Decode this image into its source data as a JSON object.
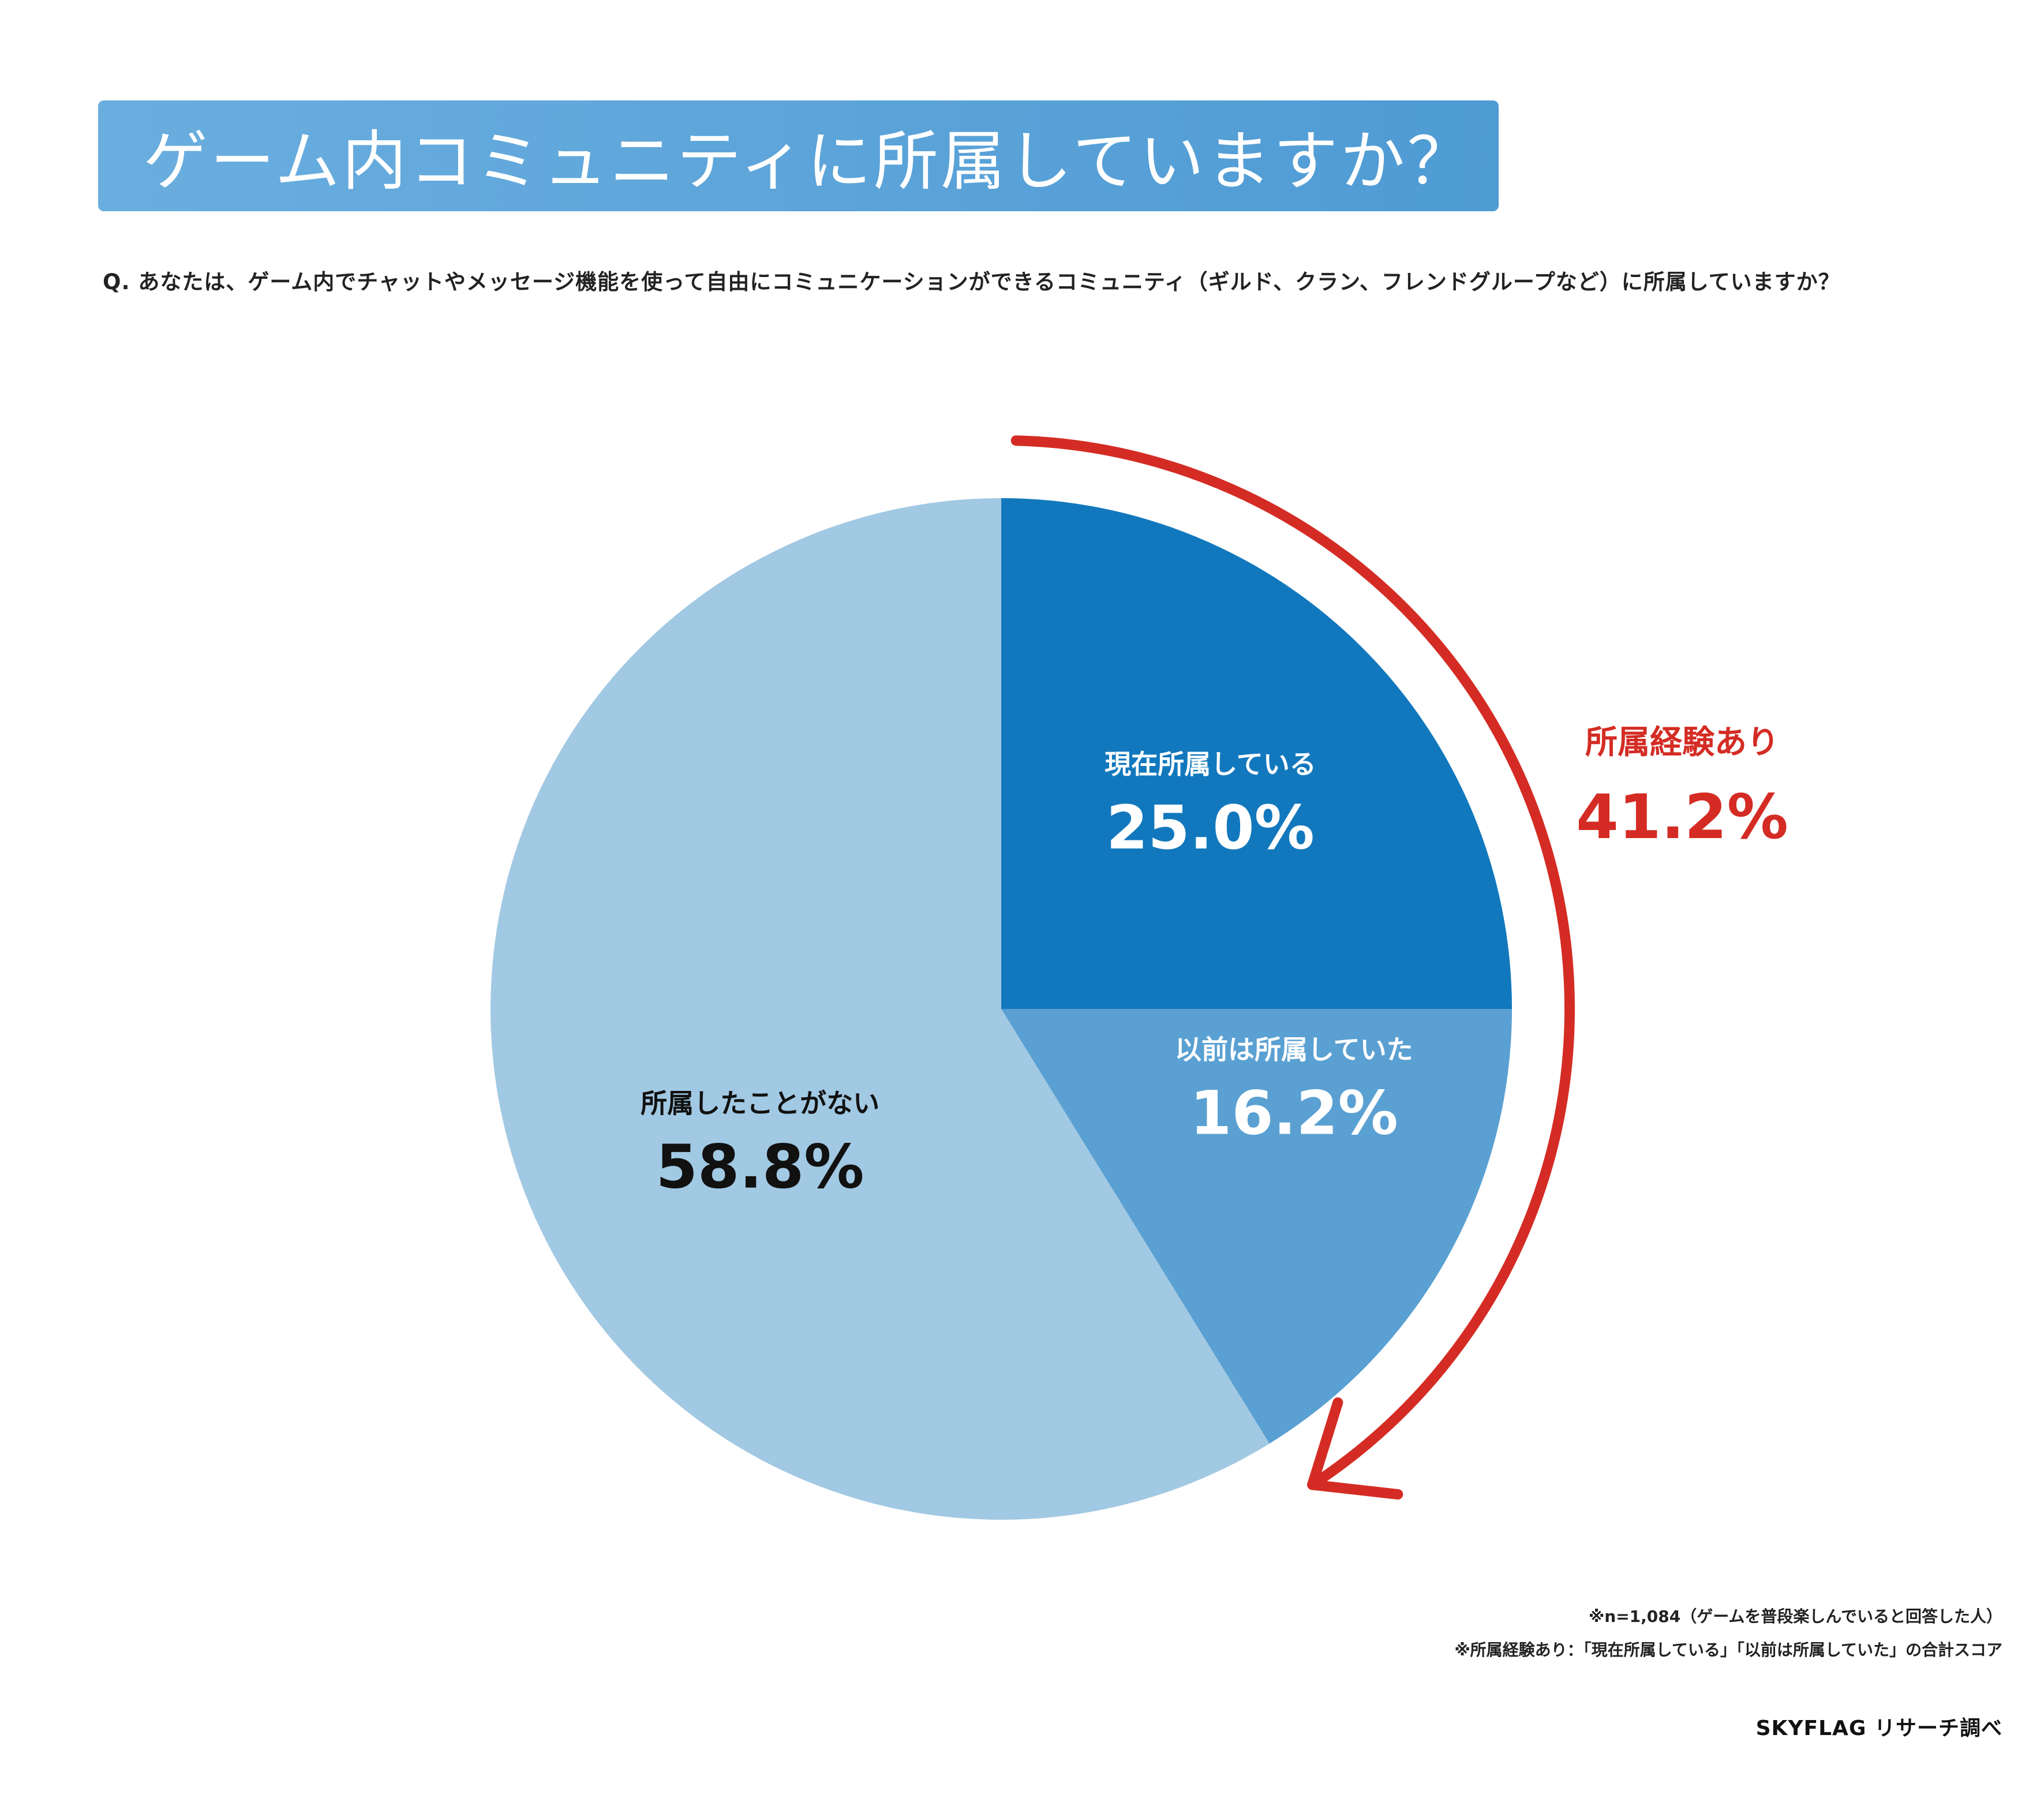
{
  "header": {
    "title": "ゲーム内コミュニティに所属していますか？"
  },
  "question": "Q. あなたは、ゲーム内でチャットやメッセージ機能を使って自由にコミュニケーションができるコミュニティ（ギルド、クラン、フレンドグループなど）に所属していますか？",
  "chart_data": {
    "type": "pie",
    "title": "ゲーム内コミュニティに所属していますか？",
    "slices": [
      {
        "label": "現在所属している",
        "value": 25.0,
        "display": "25.0%",
        "color": "#1278bd",
        "text_color": "#ffffff"
      },
      {
        "label": "以前は所属していた",
        "value": 16.2,
        "display": "16.2%",
        "color": "#5aa0d2",
        "text_color": "#ffffff"
      },
      {
        "label": "所属したことがない",
        "value": 58.8,
        "display": "58.8%",
        "color": "#a2c9e3",
        "text_color": "#111111"
      }
    ],
    "start": "12 o'clock",
    "direction": "clockwise",
    "annotation": {
      "label": "所属経験あり",
      "value": "41.2%",
      "color": "#d42c24",
      "covers": [
        "現在所属している",
        "以前は所属していた"
      ]
    }
  },
  "footnotes": [
    "※n=1,084（ゲームを普段楽しんでいると回答した人）",
    "※所属経験あり：「現在所属している」「以前は所属していた」の合計スコア"
  ],
  "source": "SKYFLAG リサーチ調べ"
}
